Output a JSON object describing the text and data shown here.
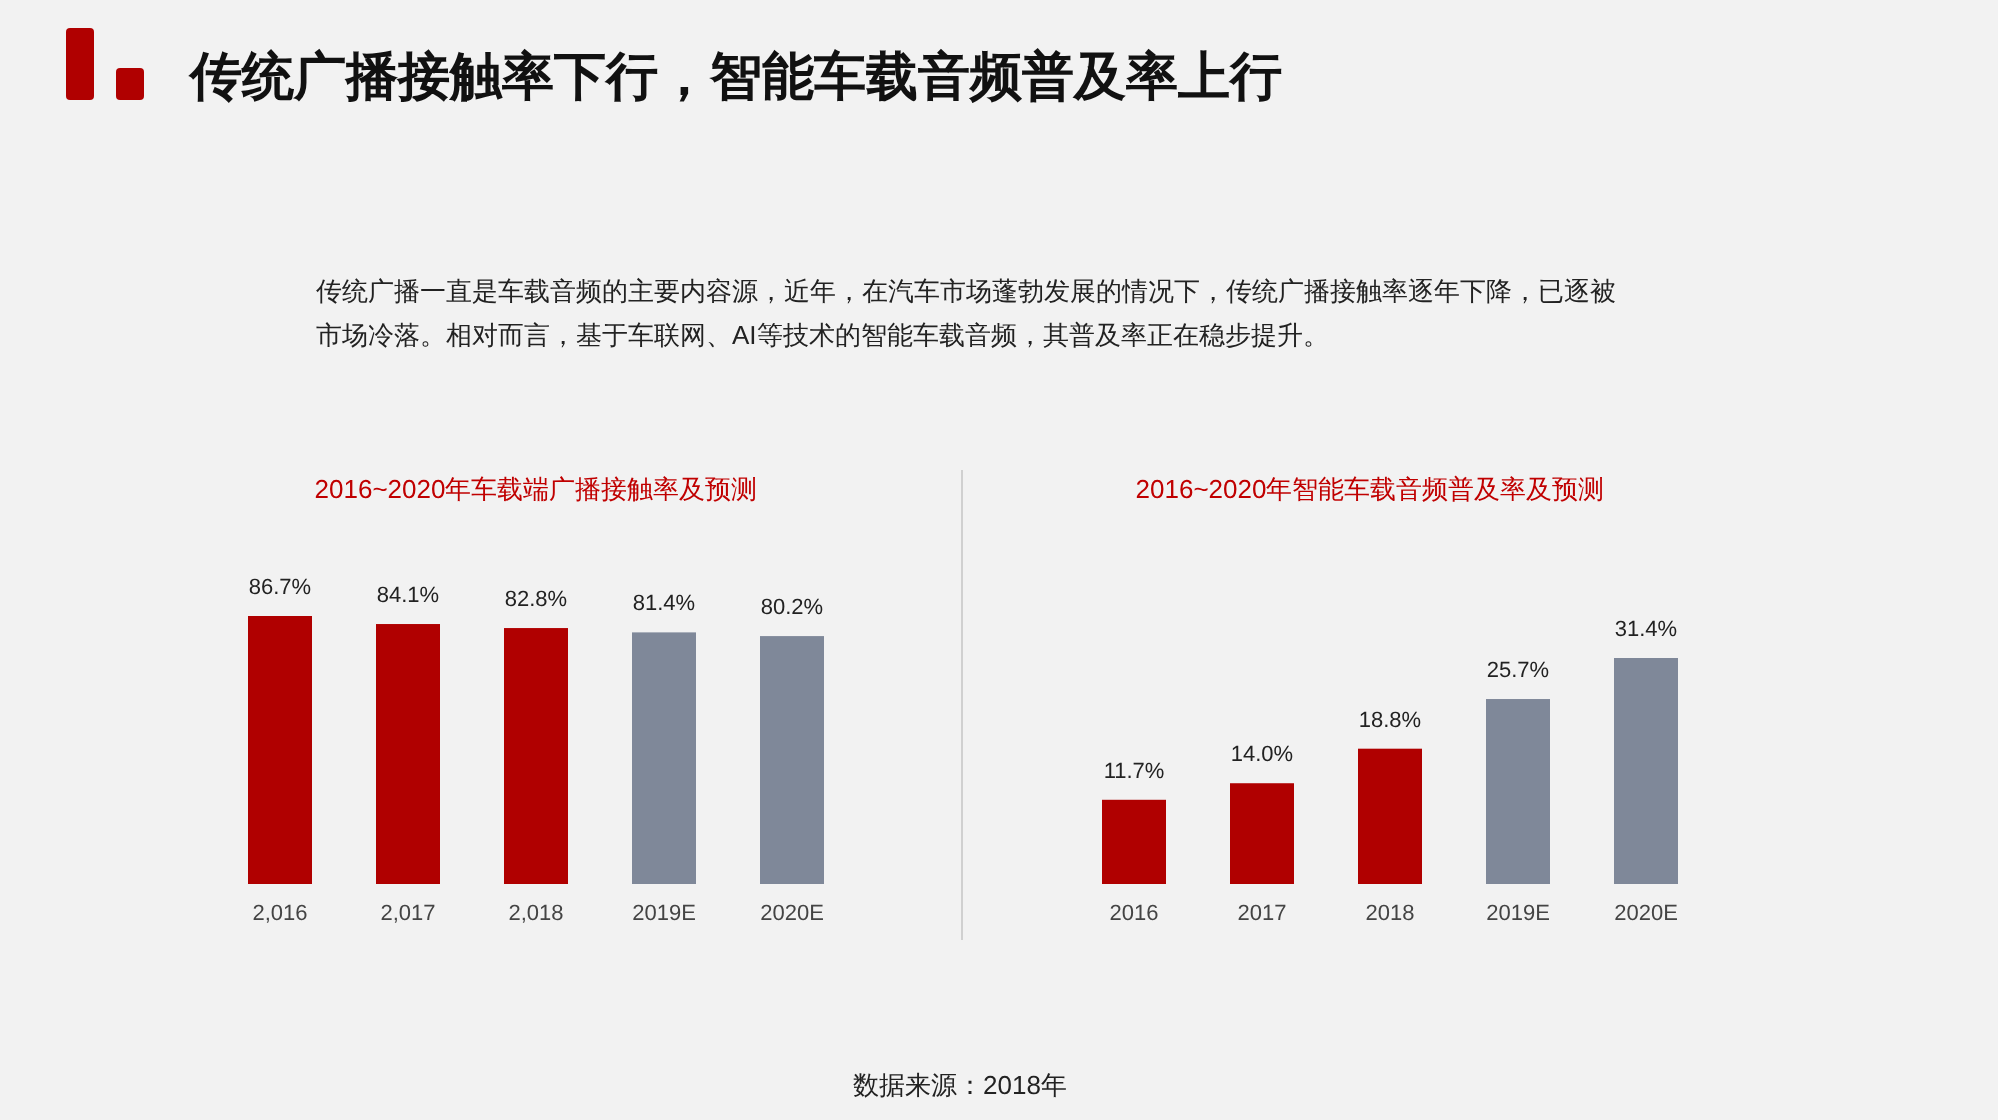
{
  "chart_data": [
    {
      "type": "other",
      "title": "传统广播接触率下行，智能车载音频普及率上行",
      "subtitle": "传统广播一直是车载音频的主要内容源，近年，在汽车市场蓬勃发展的情况下，传统广播接触率逐年下降，已逐被市场冷落。相对而言，基于车联网、AI等技术的智能车载音频，其普及率正在稳步提升。",
      "annotations": [
        "数据来源：2018年"
      ]
    },
    {
      "type": "bar",
      "title": "2016~2020年车载端广播接触率及预测",
      "categories": [
        "2,016",
        "2,017",
        "2,018",
        "2019E",
        "2020E"
      ],
      "values": [
        86.7,
        84.1,
        82.8,
        81.4,
        80.2
      ],
      "value_labels": [
        "86.7%",
        "84.1%",
        "82.8%",
        "81.4%",
        "80.2%"
      ],
      "colors": [
        "#b00000",
        "#b00000",
        "#b00000",
        "#7f8899",
        "#7f8899"
      ]
    },
    {
      "type": "bar",
      "title": "2016~2020年智能车载音频普及率及预测",
      "categories": [
        "2016",
        "2017",
        "2018",
        "2019E",
        "2020E"
      ],
      "values": [
        11.7,
        14.0,
        18.8,
        25.7,
        31.4
      ],
      "value_labels": [
        "11.7%",
        "14.0%",
        "18.8%",
        "25.7%",
        "31.4%"
      ],
      "colors": [
        "#b00000",
        "#b00000",
        "#b00000",
        "#7f8899",
        "#7f8899"
      ]
    }
  ]
}
